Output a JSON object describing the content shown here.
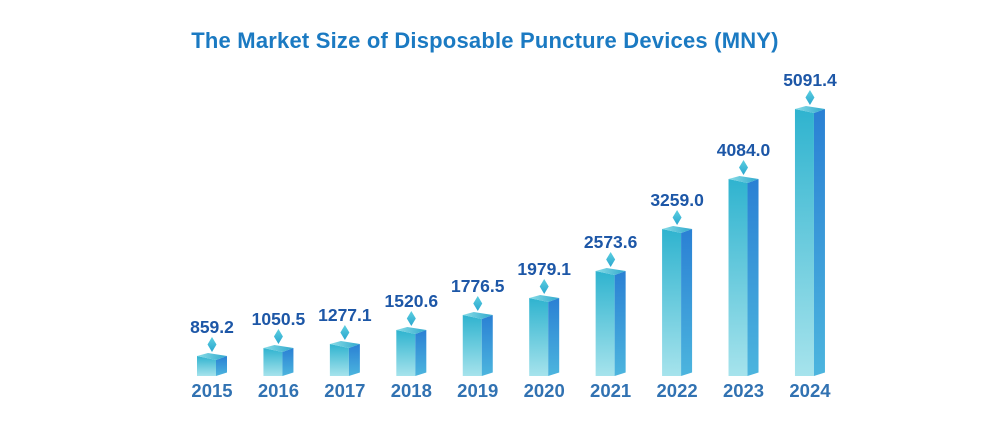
{
  "header": {
    "title": "The Market Size of Disposable Puncture Devices (MNY)",
    "title_color": "#1b7ac2"
  },
  "chart_data": {
    "type": "bar",
    "title": "The Market Size of Disposable Puncture Devices (MNY)",
    "unit": "MNY",
    "categories": [
      "2015",
      "2016",
      "2017",
      "2018",
      "2019",
      "2020",
      "2021",
      "2022",
      "2023",
      "2024"
    ],
    "values": [
      859.2,
      1050.5,
      1277.1,
      1520.6,
      1776.5,
      1979.1,
      2573.6,
      3259.0,
      4084.0,
      5091.4
    ],
    "value_labels": [
      "859.2",
      "1050.5",
      "1277.1",
      "1520.6",
      "1776.5",
      "1979.1",
      "2573.6",
      "3259.0",
      "4084.0",
      "5091.4"
    ],
    "xlabel": "",
    "ylabel": "",
    "legend": "none",
    "grid": "off",
    "bar_style": "3d-isometric-cuboid-with-diamond-marker",
    "colors": {
      "front_face_top": "#2fb3cf",
      "front_face_bottom": "#a6e3ec",
      "side_face_top": "#2a80d4",
      "side_face_bottom": "#4cb5de",
      "top_face_left": "#8adde7",
      "top_face_right": "#2fa9cd",
      "diamond_top": "#5ccfe0",
      "diamond_bottom": "#2aa6cf",
      "value_label": "#1d57a7",
      "year_label": "#3172b2"
    }
  }
}
